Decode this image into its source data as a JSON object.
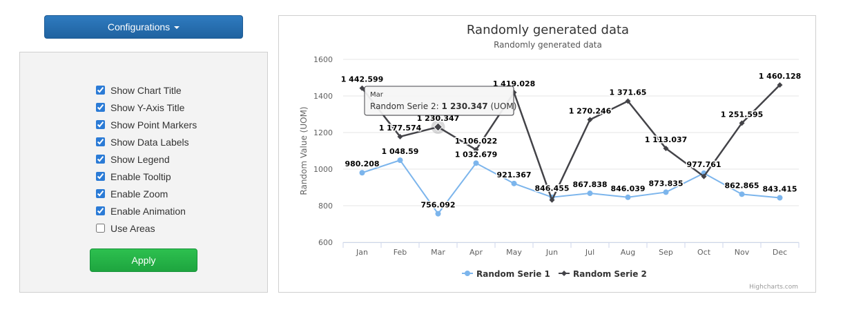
{
  "config_button": {
    "label": "Configurations"
  },
  "options": [
    {
      "label": "Show Chart Title",
      "checked": true
    },
    {
      "label": "Show Y-Axis Title",
      "checked": true
    },
    {
      "label": "Show Point Markers",
      "checked": true
    },
    {
      "label": "Show Data Labels",
      "checked": true
    },
    {
      "label": "Show Legend",
      "checked": true
    },
    {
      "label": "Enable Tooltip",
      "checked": true
    },
    {
      "label": "Enable Zoom",
      "checked": true
    },
    {
      "label": "Enable Animation",
      "checked": true
    },
    {
      "label": "Use Areas",
      "checked": false
    }
  ],
  "apply_button": {
    "label": "Apply"
  },
  "credits": "Highcharts.com",
  "chart_data": {
    "type": "line",
    "title": "Randomly generated data",
    "subtitle": "Randomly generated data",
    "ylabel": "Random Value (UOM)",
    "ylim": [
      600,
      1600
    ],
    "yticks": [
      600,
      800,
      1000,
      1200,
      1400,
      1600
    ],
    "categories": [
      "Jan",
      "Feb",
      "Mar",
      "Apr",
      "May",
      "Jun",
      "Jul",
      "Aug",
      "Sep",
      "Oct",
      "Nov",
      "Dec"
    ],
    "grid": true,
    "legend_position": "bottom-center",
    "series": [
      {
        "name": "Random Serie 1",
        "color": "#7cb5ec",
        "marker": "circle",
        "values": [
          980.208,
          1048.59,
          756.092,
          1032.679,
          921.367,
          846.455,
          867.838,
          846.039,
          873.835,
          977.761,
          862.865,
          843.415
        ],
        "labels": [
          "980.208",
          "1 048.59",
          "756.092",
          "1 032.679",
          "921.367",
          "846.455",
          "867.838",
          "846.039",
          "873.835",
          "977.761",
          "862.865",
          "843.415"
        ]
      },
      {
        "name": "Random Serie 2",
        "color": "#434348",
        "marker": "diamond",
        "values": [
          1442.599,
          1177.574,
          1230.347,
          1106.022,
          1419.028,
          831,
          1270.246,
          1371.65,
          1113.037,
          960,
          1251.595,
          1460.128
        ],
        "labels": [
          "1 442.599",
          "1 177.574",
          "1 230.347",
          "1 106.022",
          "1 419.028",
          "",
          "1 270.246",
          "1 371.65",
          "1 113.037",
          "",
          "1 251.595",
          "1 460.128"
        ]
      }
    ],
    "tooltip": {
      "category": "Mar",
      "series_name": "Random Serie 2",
      "value": "1 230.347",
      "unit": "(UOM)"
    }
  }
}
